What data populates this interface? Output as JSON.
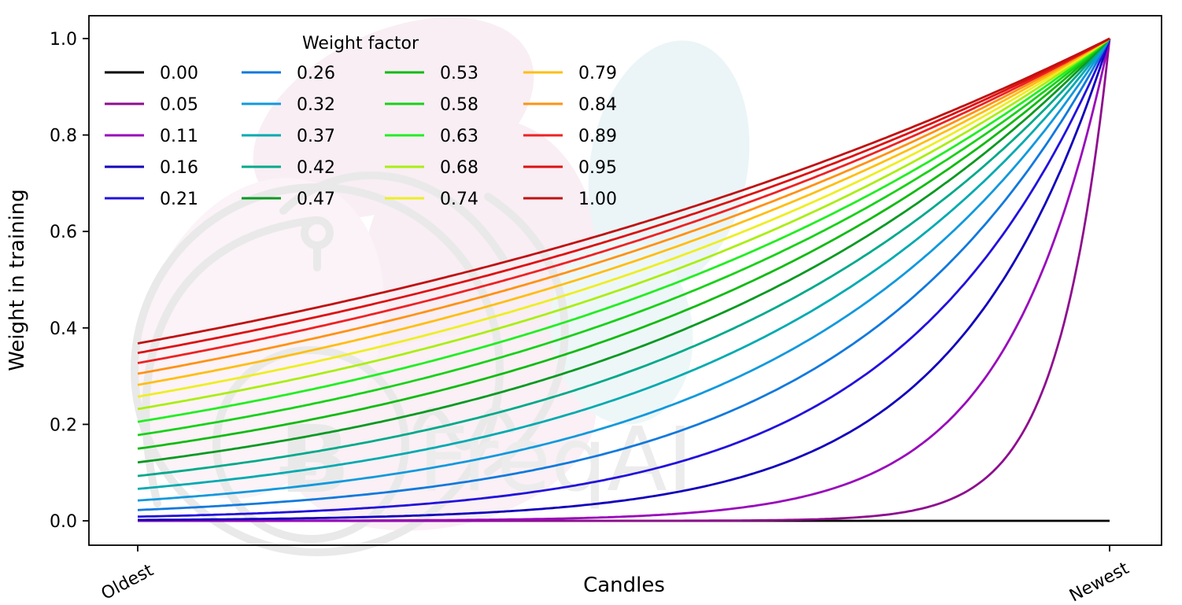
{
  "watermark": {
    "text": "FreqAI",
    "symbol": "Ƀ"
  },
  "chart_data": {
    "type": "line",
    "title": "",
    "xlabel": "Candles",
    "ylabel": "Weight in training",
    "x_tick_labels": [
      "Oldest",
      "Newest"
    ],
    "y_tick_values": [
      0.0,
      0.2,
      0.4,
      0.6,
      0.8,
      1.0
    ],
    "y_tick_labels": [
      "0.0",
      "0.2",
      "0.4",
      "0.6",
      "0.8",
      "1.0"
    ],
    "x_range": [
      0,
      1
    ],
    "ylim": [
      0,
      1
    ],
    "grid": false,
    "legend": {
      "title": "Weight factor",
      "position": "upper left",
      "columns": 4,
      "rows_per_column": 5
    },
    "curve_formula": "weight(x) = exp(-(1 - x) / factor), x from 0 (Oldest) to 1 (Newest); factor = 0 gives constant 0",
    "series": [
      {
        "label": "0.00",
        "factor": 0.0,
        "color": "#000000",
        "start_value": 0.0,
        "end_value": 0.0
      },
      {
        "label": "0.05",
        "factor": 0.0526,
        "color": "#8E0D8E",
        "start_value": 0.0,
        "end_value": 1.0
      },
      {
        "label": "0.11",
        "factor": 0.1053,
        "color": "#9909BB",
        "start_value": 0.0001,
        "end_value": 1.0
      },
      {
        "label": "0.16",
        "factor": 0.1579,
        "color": "#1100BB",
        "start_value": 0.0018,
        "end_value": 1.0
      },
      {
        "label": "0.21",
        "factor": 0.2105,
        "color": "#2211DD",
        "start_value": 0.0087,
        "end_value": 1.0
      },
      {
        "label": "0.26",
        "factor": 0.2632,
        "color": "#1179DD",
        "start_value": 0.0224,
        "end_value": 1.0
      },
      {
        "label": "0.32",
        "factor": 0.3158,
        "color": "#1199DD",
        "start_value": 0.0421,
        "end_value": 1.0
      },
      {
        "label": "0.37",
        "factor": 0.3684,
        "color": "#00AAB0",
        "start_value": 0.0663,
        "end_value": 1.0
      },
      {
        "label": "0.42",
        "factor": 0.4211,
        "color": "#00A98A",
        "start_value": 0.093,
        "end_value": 1.0
      },
      {
        "label": "0.47",
        "factor": 0.4737,
        "color": "#089922",
        "start_value": 0.1211,
        "end_value": 1.0
      },
      {
        "label": "0.53",
        "factor": 0.5263,
        "color": "#11BB11",
        "start_value": 0.1496,
        "end_value": 1.0
      },
      {
        "label": "0.58",
        "factor": 0.5789,
        "color": "#19D119",
        "start_value": 0.1778,
        "end_value": 1.0
      },
      {
        "label": "0.63",
        "factor": 0.6316,
        "color": "#22EE22",
        "start_value": 0.2054,
        "end_value": 1.0
      },
      {
        "label": "0.68",
        "factor": 0.6842,
        "color": "#AAEE11",
        "start_value": 0.2318,
        "end_value": 1.0
      },
      {
        "label": "0.74",
        "factor": 0.7368,
        "color": "#EEEE22",
        "start_value": 0.2574,
        "end_value": 1.0
      },
      {
        "label": "0.79",
        "factor": 0.7895,
        "color": "#FFBE11",
        "start_value": 0.2818,
        "end_value": 1.0
      },
      {
        "label": "0.84",
        "factor": 0.8421,
        "color": "#FF9214",
        "start_value": 0.305,
        "end_value": 1.0
      },
      {
        "label": "0.89",
        "factor": 0.8947,
        "color": "#EE2222",
        "start_value": 0.327,
        "end_value": 1.0
      },
      {
        "label": "0.95",
        "factor": 0.9474,
        "color": "#DD1111",
        "start_value": 0.348,
        "end_value": 1.0
      },
      {
        "label": "1.00",
        "factor": 1.0,
        "color": "#C01111",
        "start_value": 0.3679,
        "end_value": 1.0
      }
    ]
  }
}
